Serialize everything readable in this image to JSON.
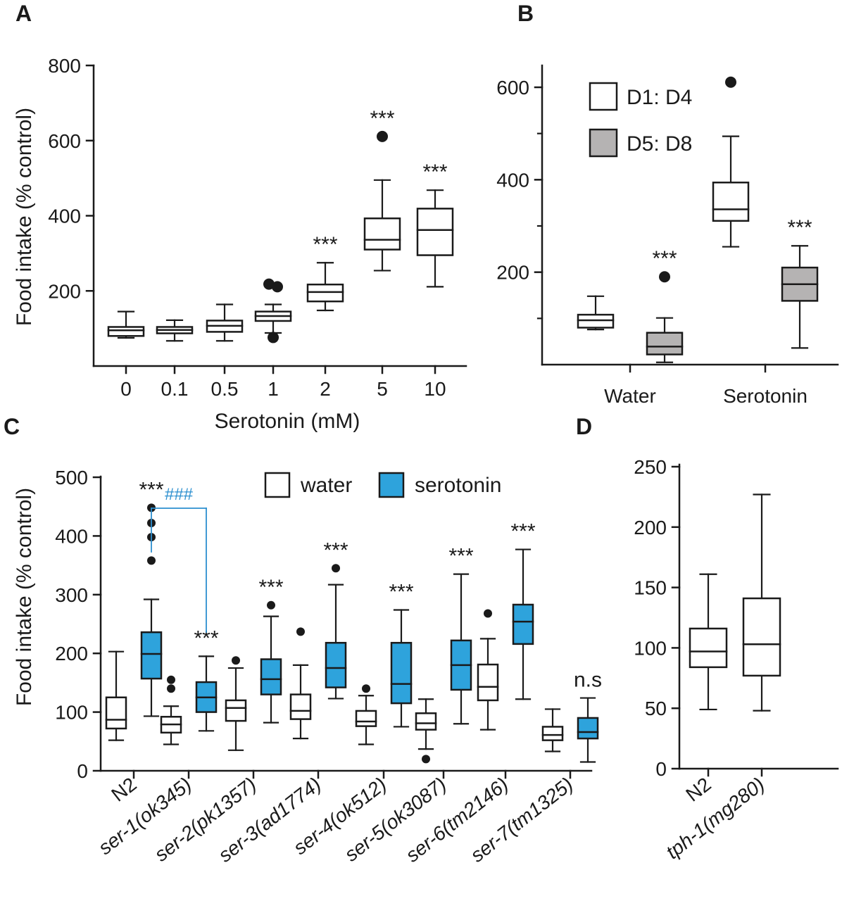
{
  "chart_data": [
    {
      "panel": "A",
      "type": "box",
      "xlabel": "Serotonin (mM)",
      "ylabel": "Food intake (% control)",
      "ylim": [
        0,
        800
      ],
      "yticks": [
        200,
        400,
        600,
        800
      ],
      "categories": [
        "0",
        "0.1",
        "0.5",
        "1",
        "2",
        "5",
        "10"
      ],
      "boxes": [
        {
          "q1": 80,
          "median": 95,
          "q3": 104,
          "whislo": 75,
          "whishi": 145,
          "outliers": [],
          "sig": ""
        },
        {
          "q1": 87,
          "median": 96,
          "q3": 104,
          "whislo": 67,
          "whishi": 122,
          "outliers": [],
          "sig": ""
        },
        {
          "q1": 91,
          "median": 107,
          "q3": 121,
          "whislo": 67,
          "whishi": 164,
          "outliers": [],
          "sig": ""
        },
        {
          "q1": 120,
          "median": 133,
          "q3": 145,
          "whislo": 88,
          "whishi": 164,
          "outliers": [
            218,
            211,
            76
          ],
          "sig": ""
        },
        {
          "q1": 172,
          "median": 197,
          "q3": 217,
          "whislo": 148,
          "whishi": 275,
          "outliers": [],
          "sig": "***"
        },
        {
          "q1": 310,
          "median": 336,
          "q3": 393,
          "whislo": 254,
          "whishi": 495,
          "outliers": [
            611
          ],
          "sig": "***"
        },
        {
          "q1": 295,
          "median": 362,
          "q3": 419,
          "whislo": 211,
          "whishi": 468,
          "outliers": [],
          "sig": "***"
        }
      ]
    },
    {
      "panel": "B",
      "type": "box",
      "ylim": [
        0,
        650
      ],
      "yticks": [
        200,
        400,
        600
      ],
      "categories": [
        "Water",
        "Serotonin"
      ],
      "legend": [
        {
          "label": "D1: D4",
          "color": "#ffffff"
        },
        {
          "label": "D5: D8",
          "color": "#b5b3b3"
        }
      ],
      "series": [
        {
          "name": "D1: D4",
          "color": "#ffffff",
          "boxes": [
            {
              "q1": 80,
              "median": 96,
              "q3": 108,
              "whislo": 76,
              "whishi": 148,
              "outliers": [],
              "sig": ""
            },
            {
              "q1": 311,
              "median": 336,
              "q3": 394,
              "whislo": 255,
              "whishi": 494,
              "outliers": [
                611
              ],
              "sig": ""
            }
          ]
        },
        {
          "name": "D5: D8",
          "color": "#b5b3b3",
          "boxes": [
            {
              "q1": 22,
              "median": 39,
              "q3": 69,
              "whislo": 5,
              "whishi": 101,
              "outliers": [
                190
              ],
              "sig": "***"
            },
            {
              "q1": 138,
              "median": 174,
              "q3": 210,
              "whislo": 36,
              "whishi": 257,
              "outliers": [],
              "sig": "***"
            }
          ]
        }
      ]
    },
    {
      "panel": "C",
      "type": "box",
      "ylabel": "Food intake (% control)",
      "ylim": [
        0,
        500
      ],
      "yticks": [
        0,
        100,
        200,
        300,
        400,
        500
      ],
      "categories": [
        "N2",
        "ser-1(ok345)",
        "ser-2(pk1357)",
        "ser-3(ad1774)",
        "ser-4(ok512)",
        "ser-5(ok3087)",
        "ser-6(tm2146)",
        "ser-7(tm1325)"
      ],
      "legend": [
        {
          "label": "water",
          "color": "#ffffff"
        },
        {
          "label": "serotonin",
          "color": "#2ea3dc"
        }
      ],
      "bracket": {
        "from": "N2",
        "to": "ser-1(ok345)",
        "label": "###"
      },
      "series": [
        {
          "name": "water",
          "color": "#ffffff",
          "boxes": [
            {
              "q1": 72,
              "median": 87,
              "q3": 125,
              "whislo": 52,
              "whishi": 203,
              "outliers": []
            },
            {
              "q1": 65,
              "median": 79,
              "q3": 92,
              "whislo": 45,
              "whishi": 110,
              "outliers": [
                155,
                140
              ]
            },
            {
              "q1": 85,
              "median": 107,
              "q3": 120,
              "whislo": 35,
              "whishi": 175,
              "outliers": [
                188
              ]
            },
            {
              "q1": 88,
              "median": 102,
              "q3": 130,
              "whislo": 55,
              "whishi": 180,
              "outliers": [
                237
              ]
            },
            {
              "q1": 76,
              "median": 84,
              "q3": 102,
              "whislo": 45,
              "whishi": 128,
              "outliers": [
                140
              ]
            },
            {
              "q1": 70,
              "median": 81,
              "q3": 98,
              "whislo": 37,
              "whishi": 122,
              "outliers": [
                20
              ]
            },
            {
              "q1": 120,
              "median": 143,
              "q3": 181,
              "whislo": 70,
              "whishi": 225,
              "outliers": [
                268
              ]
            },
            {
              "q1": 52,
              "median": 61,
              "q3": 75,
              "whislo": 33,
              "whishi": 105,
              "outliers": []
            }
          ]
        },
        {
          "name": "serotonin",
          "color": "#2ea3dc",
          "boxes": [
            {
              "q1": 157,
              "median": 199,
              "q3": 236,
              "whislo": 93,
              "whishi": 292,
              "outliers": [
                358,
                398,
                422,
                448
              ],
              "sig": "***"
            },
            {
              "q1": 100,
              "median": 125,
              "q3": 151,
              "whislo": 68,
              "whishi": 195,
              "outliers": [],
              "sig": "***"
            },
            {
              "q1": 130,
              "median": 156,
              "q3": 190,
              "whislo": 82,
              "whishi": 263,
              "outliers": [
                282
              ],
              "sig": "***"
            },
            {
              "q1": 142,
              "median": 175,
              "q3": 218,
              "whislo": 123,
              "whishi": 317,
              "outliers": [
                345
              ],
              "sig": "***"
            },
            {
              "q1": 115,
              "median": 148,
              "q3": 218,
              "whislo": 75,
              "whishi": 274,
              "outliers": [],
              "sig": "***"
            },
            {
              "q1": 138,
              "median": 180,
              "q3": 222,
              "whislo": 80,
              "whishi": 335,
              "outliers": [],
              "sig": "***"
            },
            {
              "q1": 216,
              "median": 254,
              "q3": 283,
              "whislo": 122,
              "whishi": 377,
              "outliers": [],
              "sig": "***"
            },
            {
              "q1": 55,
              "median": 66,
              "q3": 90,
              "whislo": 15,
              "whishi": 124,
              "outliers": [],
              "sig": "n.s"
            }
          ]
        }
      ]
    },
    {
      "panel": "D",
      "type": "box",
      "ylim": [
        0,
        250
      ],
      "yticks": [
        0,
        50,
        100,
        150,
        200,
        250
      ],
      "categories": [
        "N2",
        "tph-1(mg280)"
      ],
      "boxes": [
        {
          "q1": 84,
          "median": 97,
          "q3": 116,
          "whislo": 49,
          "whishi": 161,
          "outliers": []
        },
        {
          "q1": 77,
          "median": 103,
          "q3": 141,
          "whislo": 48,
          "whishi": 227,
          "outliers": []
        }
      ]
    }
  ]
}
